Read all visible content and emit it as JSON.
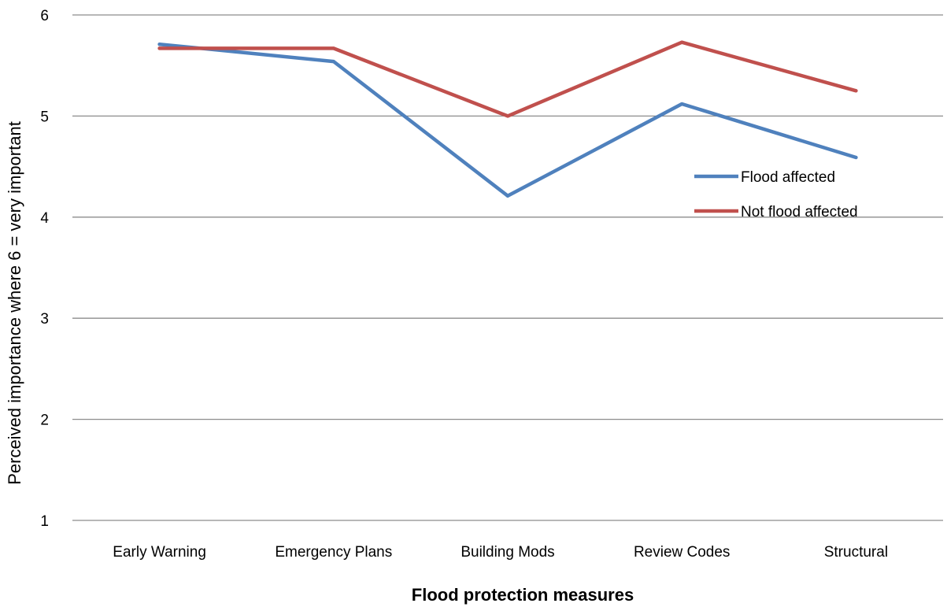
{
  "chart_data": {
    "type": "line",
    "title": "",
    "xlabel": "Flood protection measures",
    "ylabel": "Perceived importance where 6 = very important",
    "categories": [
      "Early Warning",
      "Emergency Plans",
      "Building Mods",
      "Review Codes",
      "Structural"
    ],
    "ylim": [
      1,
      6
    ],
    "yticks": [
      1,
      2,
      3,
      4,
      5,
      6
    ],
    "grid": true,
    "legend_position": "right",
    "series": [
      {
        "name": "Flood affected",
        "color": "#4F81BD",
        "values": [
          5.71,
          5.54,
          4.21,
          5.12,
          4.59
        ]
      },
      {
        "name": "Not flood affected",
        "color": "#C0504D",
        "values": [
          5.67,
          5.67,
          5.0,
          5.73,
          5.25
        ]
      }
    ]
  }
}
